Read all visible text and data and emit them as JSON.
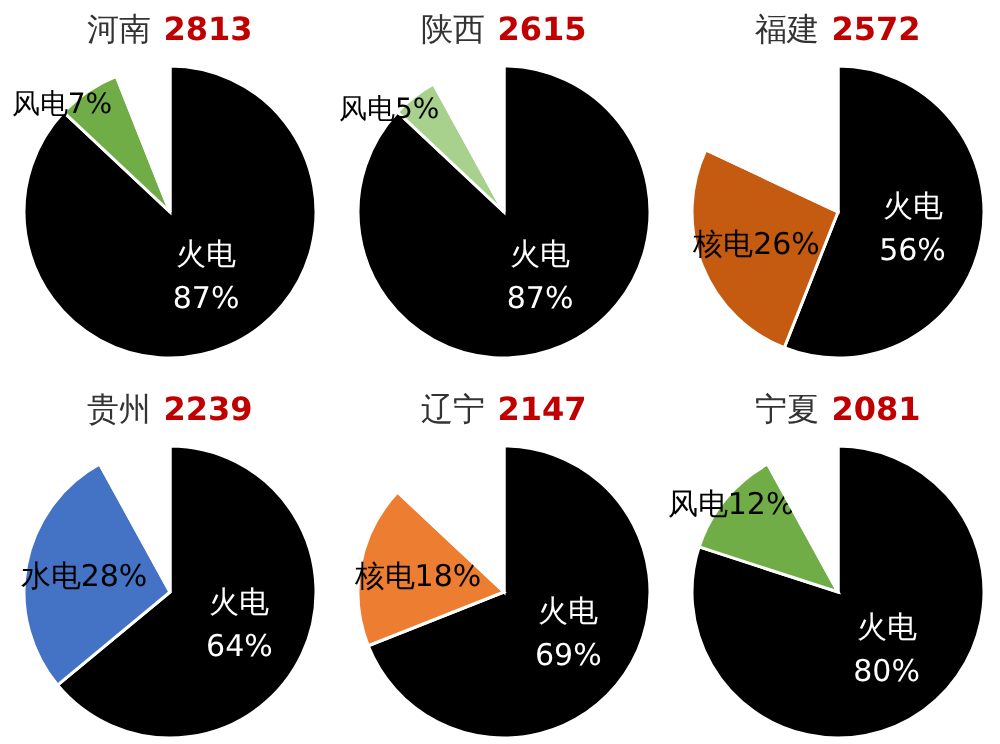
{
  "chart_data": [
    {
      "type": "pie",
      "title": "河南",
      "subtitle": "2813",
      "categories": [
        "火电",
        "风电",
        null
      ],
      "values": [
        87,
        7,
        6
      ],
      "value_labels": [
        "87%",
        "7%",
        null
      ],
      "colors": [
        "#000000",
        "#70ad47",
        "#ffffff"
      ]
    },
    {
      "type": "pie",
      "title": "陕西",
      "subtitle": "2615",
      "categories": [
        "火电",
        "风电",
        null
      ],
      "values": [
        87,
        5,
        8
      ],
      "value_labels": [
        "87%",
        "5%",
        null
      ],
      "colors": [
        "#000000",
        "#a9d18e",
        "#ffffff"
      ]
    },
    {
      "type": "pie",
      "title": "福建",
      "subtitle": "2572",
      "categories": [
        "火电",
        "核电",
        null
      ],
      "values": [
        56,
        26,
        18
      ],
      "value_labels": [
        "56%",
        "26%",
        null
      ],
      "colors": [
        "#000000",
        "#c55a11",
        "#ffffff"
      ]
    },
    {
      "type": "pie",
      "title": "贵州",
      "subtitle": "2239",
      "categories": [
        "火电",
        "水电",
        null
      ],
      "values": [
        64,
        28,
        8
      ],
      "value_labels": [
        "64%",
        "28%",
        null
      ],
      "colors": [
        "#000000",
        "#4472c4",
        "#ffffff"
      ]
    },
    {
      "type": "pie",
      "title": "辽宁",
      "subtitle": "2147",
      "categories": [
        "火电",
        "核电",
        null
      ],
      "values": [
        69,
        18,
        13
      ],
      "value_labels": [
        "69%",
        "18%",
        null
      ],
      "colors": [
        "#000000",
        "#ed7d31",
        "#ffffff"
      ]
    },
    {
      "type": "pie",
      "title": "宁夏",
      "subtitle": "2081",
      "categories": [
        "火电",
        "风电",
        null
      ],
      "values": [
        80,
        12,
        8
      ],
      "value_labels": [
        "80%",
        "12%",
        null
      ],
      "colors": [
        "#000000",
        "#70ad47",
        "#ffffff"
      ]
    }
  ]
}
